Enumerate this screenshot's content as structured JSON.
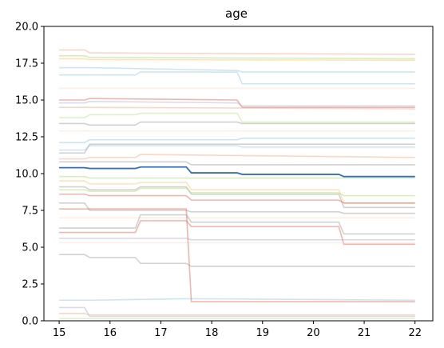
{
  "chart_data": {
    "type": "line",
    "title": "age",
    "xlabel": "",
    "ylabel": "",
    "xlim": [
      14.7,
      22.35
    ],
    "ylim": [
      0,
      20
    ],
    "grid": false,
    "x_ticks": [
      15,
      16,
      17,
      18,
      19,
      20,
      21,
      22
    ],
    "x_tick_labels": [
      "15",
      "16",
      "17",
      "18",
      "19",
      "20",
      "21",
      "22"
    ],
    "y_ticks": [
      0.0,
      2.5,
      5.0,
      7.5,
      10.0,
      12.5,
      15.0,
      17.5,
      20.0
    ],
    "y_tick_labels": [
      "0.0",
      "2.5",
      "5.0",
      "7.5",
      "10.0",
      "12.5",
      "15.0",
      "17.5",
      "20.0"
    ],
    "mean_series": {
      "color": "#3a6fb5",
      "x": [
        15,
        15.5,
        15.6,
        16.5,
        16.6,
        17.5,
        17.6,
        18.5,
        18.6,
        19.5,
        20.5,
        20.6,
        22
      ],
      "values": [
        10.4,
        10.4,
        10.35,
        10.35,
        10.45,
        10.45,
        10.05,
        10.05,
        9.95,
        9.95,
        9.95,
        9.8,
        9.8
      ]
    },
    "background_series": [
      {
        "color": "#f4a582",
        "x": [
          15,
          15.5,
          15.6,
          22
        ],
        "values": [
          18.4,
          18.4,
          18.2,
          18.1
        ]
      },
      {
        "color": "#a6d96a",
        "x": [
          15,
          15.5,
          15.6,
          22
        ],
        "values": [
          18.0,
          18.0,
          17.9,
          17.8
        ]
      },
      {
        "color": "#fdbf6f",
        "x": [
          15,
          15.5,
          15.6,
          22
        ],
        "values": [
          17.8,
          17.8,
          17.75,
          17.7
        ]
      },
      {
        "color": "#92c5de",
        "x": [
          15,
          15.5,
          15.6,
          18.5,
          18.6,
          22
        ],
        "values": [
          17.2,
          17.2,
          17.2,
          17.0,
          16.9,
          16.9
        ]
      },
      {
        "color": "#92c5de",
        "x": [
          15,
          15.5,
          15.6,
          16.5,
          16.6,
          18.5,
          18.6,
          22
        ],
        "values": [
          16.7,
          16.7,
          16.7,
          16.7,
          16.9,
          16.9,
          16.1,
          16.1
        ]
      },
      {
        "color": "#fddbc7",
        "x": [
          15,
          22
        ],
        "values": [
          15.8,
          15.8
        ]
      },
      {
        "color": "#d6604d",
        "x": [
          15,
          15.5,
          15.6,
          18.5,
          18.6,
          22
        ],
        "values": [
          15.0,
          15.0,
          15.1,
          15.0,
          14.5,
          14.5
        ]
      },
      {
        "color": "#b2abd2",
        "x": [
          15,
          15.5,
          15.6,
          18.5,
          18.6,
          22
        ],
        "values": [
          14.8,
          14.8,
          14.9,
          14.8,
          14.6,
          14.6
        ]
      },
      {
        "color": "#f4a582",
        "x": [
          15,
          15.5,
          15.6,
          22
        ],
        "values": [
          14.5,
          14.5,
          14.5,
          14.4
        ]
      },
      {
        "color": "#b8e186",
        "x": [
          15,
          15.5,
          15.6,
          16.5,
          16.6,
          18.5,
          18.6,
          22
        ],
        "values": [
          13.8,
          13.8,
          14.0,
          14.0,
          14.1,
          14.1,
          13.5,
          13.5
        ]
      },
      {
        "color": "#999999",
        "x": [
          15,
          15.5,
          15.6,
          16.5,
          16.6,
          18.5,
          18.6,
          22
        ],
        "values": [
          13.4,
          13.4,
          13.3,
          13.3,
          13.5,
          13.5,
          13.4,
          13.4
        ]
      },
      {
        "color": "#fddbc7",
        "x": [
          15,
          22
        ],
        "values": [
          12.9,
          12.9
        ]
      },
      {
        "color": "#92c5de",
        "x": [
          15,
          15.5,
          15.6,
          18.5,
          18.6,
          22
        ],
        "values": [
          12.1,
          12.1,
          12.3,
          12.3,
          12.4,
          12.4
        ]
      },
      {
        "color": "#999999",
        "x": [
          15,
          15.5,
          15.6,
          22
        ],
        "values": [
          11.4,
          11.4,
          12.0,
          12.0
        ]
      },
      {
        "color": "#92c5de",
        "x": [
          15,
          15.5,
          15.6,
          18.5,
          18.6,
          22
        ],
        "values": [
          11.6,
          11.6,
          11.9,
          11.9,
          11.8,
          11.8
        ]
      },
      {
        "color": "#f4a582",
        "x": [
          15,
          15.5,
          15.6,
          16.5,
          16.6,
          22
        ],
        "values": [
          11.0,
          11.0,
          11.1,
          11.1,
          11.3,
          11.1
        ]
      },
      {
        "color": "#999999",
        "x": [
          15,
          15.5,
          15.6,
          17.5,
          17.6,
          22
        ],
        "values": [
          10.8,
          10.8,
          10.8,
          10.8,
          10.6,
          10.6
        ]
      },
      {
        "color": "#a6d96a",
        "x": [
          15,
          15.5,
          15.6,
          22
        ],
        "values": [
          9.8,
          9.8,
          9.7,
          9.7
        ]
      },
      {
        "color": "#fdbf6f",
        "x": [
          15,
          15.5,
          15.6,
          16.5,
          16.6,
          17.5,
          17.6,
          20.5,
          20.6,
          22
        ],
        "values": [
          9.5,
          9.5,
          9.3,
          9.3,
          9.4,
          9.4,
          8.9,
          8.9,
          8.0,
          8.0
        ]
      },
      {
        "color": "#999999",
        "x": [
          15,
          15.5,
          15.6,
          16.5,
          16.6,
          17.5,
          17.6,
          20.5,
          20.6,
          22
        ],
        "values": [
          9.1,
          9.1,
          8.9,
          8.9,
          9.1,
          9.1,
          8.6,
          8.6,
          7.7,
          7.7
        ]
      },
      {
        "color": "#a6d96a",
        "x": [
          15,
          15.5,
          15.6,
          16.5,
          16.6,
          17.5,
          17.6,
          20.5,
          20.6,
          22
        ],
        "values": [
          8.9,
          8.9,
          8.8,
          8.8,
          9.0,
          9.0,
          8.7,
          8.7,
          8.5,
          8.5
        ]
      },
      {
        "color": "#d6604d",
        "x": [
          15,
          15.5,
          15.6,
          17.5,
          17.6,
          20.5,
          20.6,
          22
        ],
        "values": [
          8.6,
          8.6,
          8.5,
          8.5,
          8.2,
          8.2,
          8.0,
          8.0
        ]
      },
      {
        "color": "#999999",
        "x": [
          15,
          15.5,
          15.6,
          17.5,
          17.6,
          20.5,
          20.6,
          22
        ],
        "values": [
          8.0,
          8.0,
          7.5,
          7.5,
          7.4,
          7.4,
          7.3,
          7.3
        ]
      },
      {
        "color": "#fddbc7",
        "x": [
          15,
          22
        ],
        "values": [
          7.0,
          7.0
        ]
      },
      {
        "color": "#999999",
        "x": [
          15,
          15.5,
          15.6,
          16.5,
          16.6,
          17.5,
          17.6,
          20.5,
          20.6,
          22
        ],
        "values": [
          6.3,
          6.3,
          6.3,
          6.3,
          7.2,
          7.2,
          6.7,
          6.7,
          5.9,
          5.9
        ]
      },
      {
        "color": "#d6604d",
        "x": [
          15,
          15.5,
          15.6,
          16.5,
          16.6,
          17.5,
          17.6,
          20.5,
          20.6,
          22
        ],
        "values": [
          6.0,
          6.0,
          6.0,
          6.0,
          6.8,
          6.8,
          6.4,
          6.4,
          5.2,
          5.2
        ]
      },
      {
        "color": "#b2abd2",
        "x": [
          15,
          15.5,
          15.6,
          17.5,
          17.6,
          22
        ],
        "values": [
          5.6,
          5.6,
          5.6,
          5.6,
          5.5,
          5.5
        ]
      },
      {
        "color": "#fddbc7",
        "x": [
          15,
          15.5,
          15.6,
          22
        ],
        "values": [
          5.3,
          5.3,
          5.3,
          5.3
        ]
      },
      {
        "color": "#999999",
        "x": [
          15,
          15.5,
          15.6,
          16.5,
          16.6,
          17.5,
          17.6,
          22
        ],
        "values": [
          4.5,
          4.5,
          4.3,
          4.3,
          3.9,
          3.9,
          3.7,
          3.7
        ]
      },
      {
        "color": "#92c5de",
        "x": [
          15,
          15.5,
          15.6,
          17.5,
          17.6,
          22
        ],
        "values": [
          1.4,
          1.4,
          1.4,
          1.5,
          1.5,
          1.4
        ]
      },
      {
        "color": "#d6604d",
        "x": [
          15,
          15.5,
          15.6,
          17.5,
          17.6,
          22
        ],
        "values": [
          7.6,
          7.6,
          7.6,
          7.6,
          1.3,
          1.3
        ]
      },
      {
        "color": "#b2abd2",
        "x": [
          15,
          15.5,
          15.6,
          22
        ],
        "values": [
          0.9,
          0.9,
          0.3,
          0.3
        ]
      },
      {
        "color": "#f4a582",
        "x": [
          15,
          15.5,
          15.6,
          22
        ],
        "values": [
          0.5,
          0.5,
          0.4,
          0.4
        ]
      },
      {
        "color": "#b8e186",
        "x": [
          15,
          22
        ],
        "values": [
          0.15,
          0.15
        ]
      }
    ]
  }
}
